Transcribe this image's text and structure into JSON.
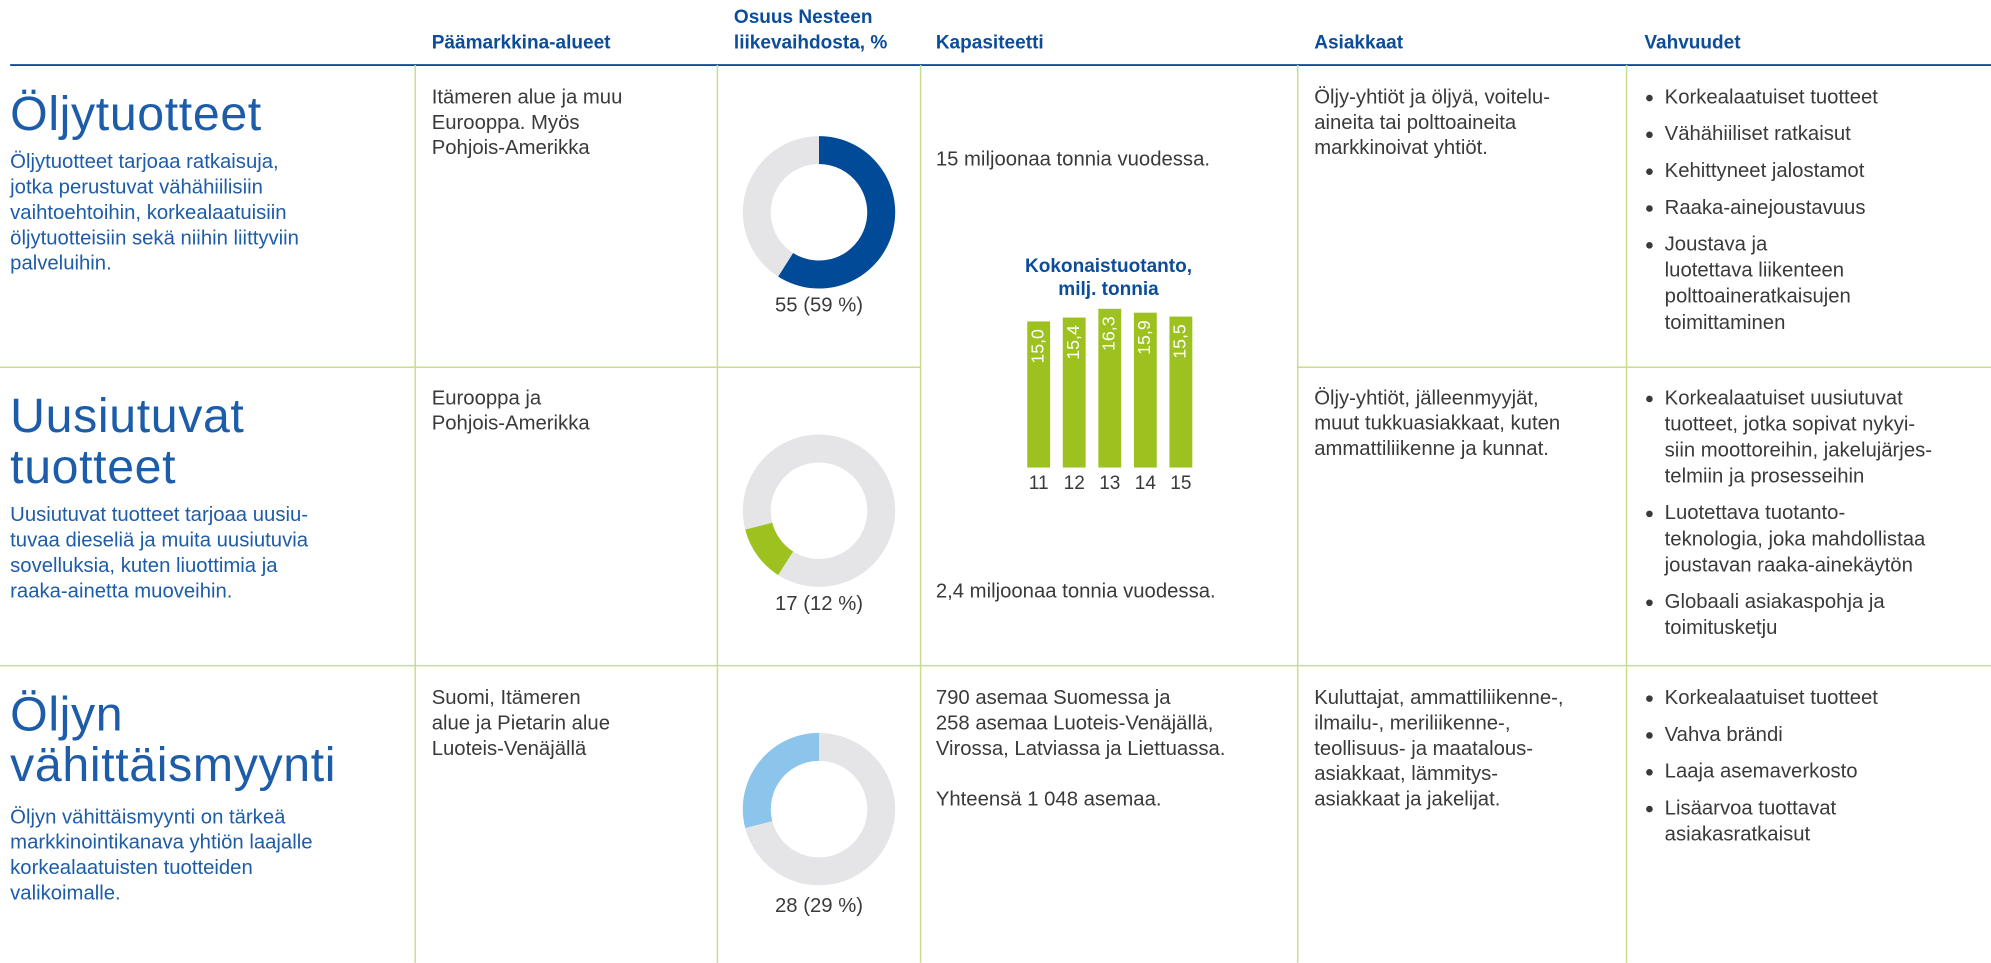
{
  "headers": [
    [
      "Päämarkkina-alueet"
    ],
    [
      "Osuus Nesteen",
      "liikevaihdosta, %"
    ],
    [
      "Kapasiteetti"
    ],
    [
      "Asiakkaat"
    ],
    [
      "Vahvuudet"
    ]
  ],
  "rows": [
    {
      "title": [
        "Öljytuotteet"
      ],
      "description": [
        "Öljytuotteet tarjoaa ratkaisuja,",
        "jotka perustuvat vähähiilisiin",
        "vaihtoehtoihin, korkealaatuisiin",
        "öljytuotteisiin sekä niihin liittyviin",
        "palveluihin."
      ],
      "markets": [
        "Itämeren alue ja muu",
        "Eurooppa. Myös",
        "Pohjois-Amerikka"
      ],
      "share": 59,
      "share_label": "55 (59 %)",
      "share_color": "#004a98",
      "capacity": [
        [
          "15 miljoonaa tonnia vuodessa."
        ]
      ],
      "customers": [
        "Öljy-yhtiöt ja öljyä, voitelu-",
        "aineita tai polttoaineita",
        "markkinoivat yhtiöt."
      ],
      "strengths": [
        [
          "Korkealaatuiset tuotteet"
        ],
        [
          "Vähähiiliset ratkaisut"
        ],
        [
          "Kehittyneet jalostamot"
        ],
        [
          "Raaka-ainejoustavuus"
        ],
        [
          "Joustava ja",
          "luotettava liikenteen",
          "polttoaineratkaisujen",
          "toimittaminen"
        ]
      ]
    },
    {
      "title": [
        "Uusiutuvat",
        "tuotteet"
      ],
      "description": [
        "Uusiutuvat tuotteet tarjoaa uusiu-",
        "tuvaa dieseliä ja muita uusiutuvia",
        "sovelluksia, kuten liuottimia ja",
        "raaka-ainetta muoveihin."
      ],
      "markets": [
        "Eurooppa ja",
        "Pohjois-Amerikka"
      ],
      "share": 12,
      "share_label": "17 (12 %)",
      "share_color": "#9dc21f",
      "capacity": [
        [
          "2,4 miljoonaa tonnia vuodessa."
        ]
      ],
      "customers": [
        "Öljy-yhtiöt, jälleenmyyjät,",
        "muut tukkuasiakkaat, kuten",
        "ammattiliikenne ja kunnat."
      ],
      "strengths": [
        [
          "Korkealaatuiset uusiutuvat",
          "tuotteet, jotka sopivat nykyi-",
          "siin moottoreihin, jakelujärjes-",
          "telmiin ja prosesseihin"
        ],
        [
          "Luotettava tuotanto-",
          "teknologia, joka mahdollistaa",
          "joustavan raaka-ainekäytön"
        ],
        [
          "Globaali asiakaspohja ja",
          "toimitusketju"
        ]
      ]
    },
    {
      "title": [
        "Öljyn",
        "vähittäismyynti"
      ],
      "description": [
        "Öljyn vähittäismyynti on tärkeä",
        "markkinointikanava yhtiön laajalle",
        "korkealaatuisten tuotteiden",
        "valikoimalle."
      ],
      "markets": [
        "Suomi, Itämeren",
        "alue ja Pietarin alue",
        "Luoteis-Venäjällä"
      ],
      "share": 29,
      "share_label": "28 (29 %)",
      "share_color": "#8cc5ec",
      "capacity": [
        [
          "790 asemaa Suomessa ja",
          "258 asemaa Luoteis-Venäjällä,",
          "Virossa, Latviassa ja Liettuassa."
        ],
        [
          "Yhteensä 1 048 asemaa."
        ]
      ],
      "customers": [
        "Kuluttajat, ammattiliikenne-,",
        "ilmailu-, meriliikenne-,",
        "teollisuus- ja maatalous-",
        "asiakkaat, lämmitys-",
        "asiakkaat ja jakelijat."
      ],
      "strengths": [
        [
          "Korkealaatuiset tuotteet"
        ],
        [
          "Vahva brändi"
        ],
        [
          "Laaja asemaverkosto"
        ],
        [
          "Lisäarvoa tuottavat",
          "asiakasratkaisut"
        ]
      ]
    }
  ],
  "chart_data": {
    "type": "bar",
    "title": [
      "Kokonaistuotanto,",
      "milj. tonnia"
    ],
    "categories": [
      "11",
      "12",
      "13",
      "14",
      "15"
    ],
    "values": [
      15.0,
      15.4,
      16.3,
      15.9,
      15.5
    ],
    "value_labels": [
      "15,0",
      "15,4",
      "16,3",
      "15,9",
      "15,5"
    ],
    "color": "#9dc21f"
  }
}
